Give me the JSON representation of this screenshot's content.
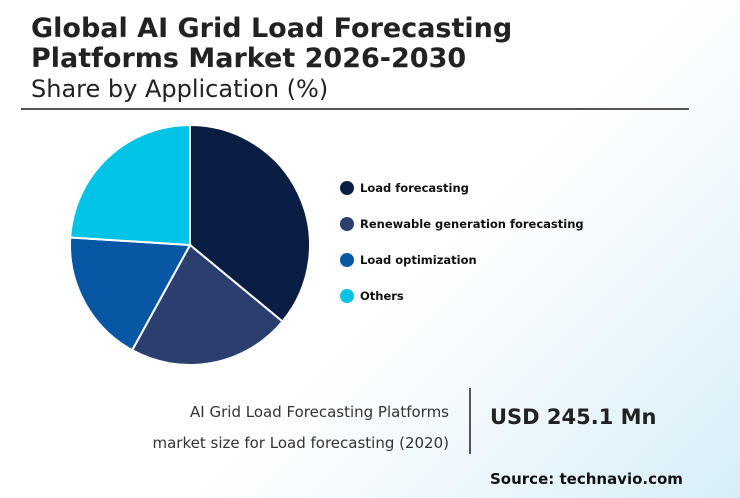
{
  "header": {
    "title": "Global AI Grid Load Forecasting Platforms Market 2026-2030",
    "subtitle": "Share by Application (%)"
  },
  "chart_data": {
    "type": "pie",
    "title": "Global AI Grid Load Forecasting Platforms Market 2026-2030",
    "subtitle": "Share by Application (%)",
    "categories": [
      "Load forecasting",
      "Renewable generation forecasting",
      "Load optimization",
      "Others"
    ],
    "values": [
      36,
      22,
      18,
      24
    ],
    "colors": [
      "#0a1e44",
      "#2a3f70",
      "#0757a5",
      "#00c3e5"
    ],
    "legend_position": "right"
  },
  "stat": {
    "label_line1": "AI Grid Load Forecasting Platforms",
    "label_line2": "market size for Load forecasting (2020)",
    "value": "USD 245.1 Mn"
  },
  "footer": {
    "source": "Source: technavio.com"
  }
}
